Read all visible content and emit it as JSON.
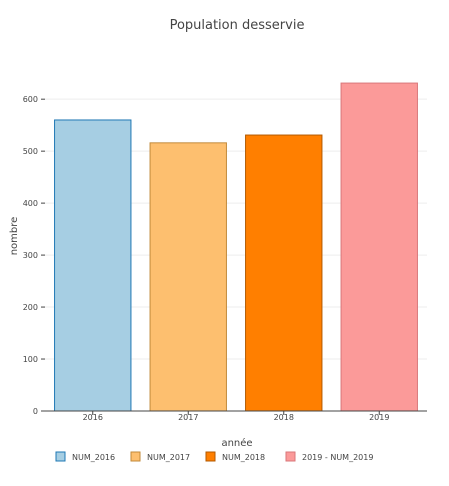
{
  "chart_data": {
    "type": "bar",
    "title": "Population desservie",
    "xlabel": "année",
    "ylabel": "nombre",
    "categories": [
      "2016",
      "2017",
      "2018",
      "2019"
    ],
    "values": [
      560,
      516,
      531,
      631
    ],
    "series_names": [
      "NUM_2016",
      "NUM_2017",
      "NUM_2018",
      "2019 - NUM_2019"
    ],
    "colors": [
      "#a6cee3",
      "#fdbf6f",
      "#ff7f00",
      "#fb9a99"
    ],
    "border_colors": [
      "#1f78b4",
      "#c28a3a",
      "#b35a00",
      "#d9777a"
    ],
    "ylim": [
      0,
      660
    ],
    "yticks": [
      0,
      100,
      200,
      300,
      400,
      500,
      600
    ],
    "grid": true,
    "legend_position": "bottom"
  }
}
